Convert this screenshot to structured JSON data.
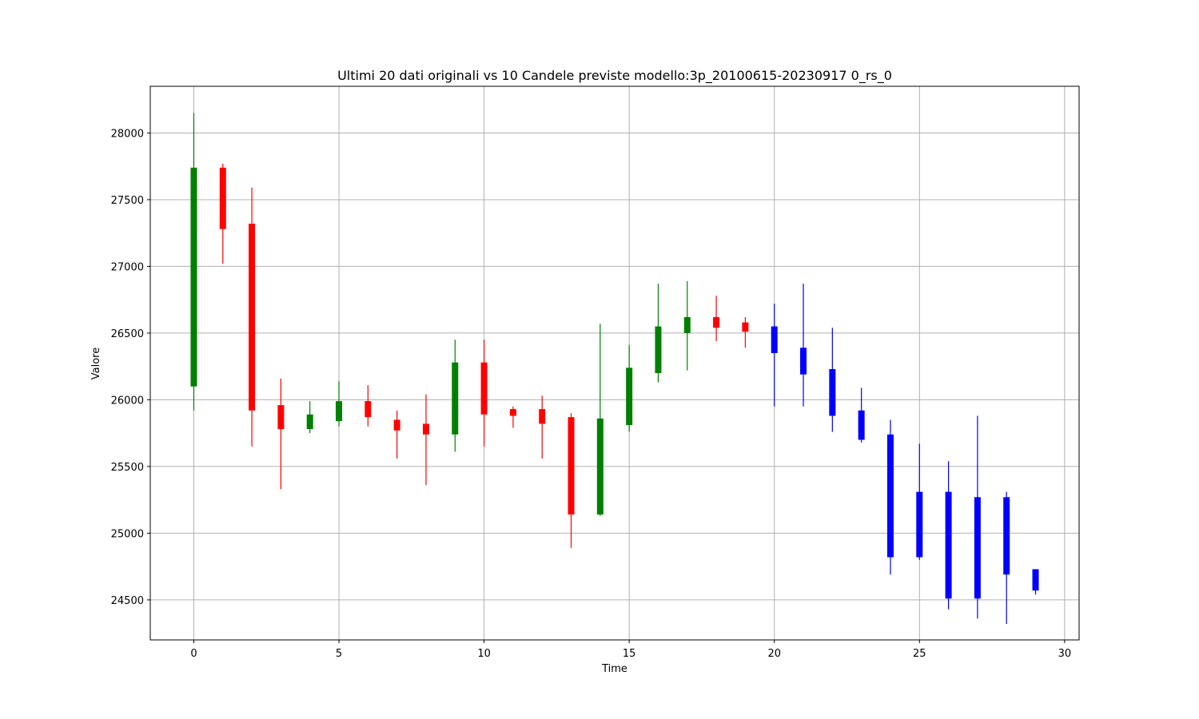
{
  "chart_data": {
    "type": "candlestick",
    "title": "Ultimi 20 dati originali vs 10 Candele previste modello:3p_20100615-20230917 0_rs_0",
    "xlabel": "Time",
    "ylabel": "Valore",
    "xlim": [
      -1.5,
      30.5
    ],
    "ylim": [
      24200,
      28350
    ],
    "x_ticks": [
      0,
      5,
      10,
      15,
      20,
      25,
      30
    ],
    "y_ticks": [
      24500,
      25000,
      25500,
      26000,
      26500,
      27000,
      27500,
      28000
    ],
    "grid": true,
    "colors": {
      "up": "#008000",
      "down": "#ff0000",
      "forecast": "#0000ff",
      "grid": "#b0b0b0"
    },
    "series": [
      {
        "name": "original",
        "candles": [
          {
            "x": 0,
            "open": 26100,
            "high": 28150,
            "low": 25920,
            "close": 27740
          },
          {
            "x": 1,
            "open": 27740,
            "high": 27770,
            "low": 27020,
            "close": 27280
          },
          {
            "x": 2,
            "open": 27320,
            "high": 27590,
            "low": 25650,
            "close": 25920
          },
          {
            "x": 3,
            "open": 25960,
            "high": 26160,
            "low": 25330,
            "close": 25780
          },
          {
            "x": 4,
            "open": 25780,
            "high": 25990,
            "low": 25750,
            "close": 25890
          },
          {
            "x": 5,
            "open": 25840,
            "high": 26140,
            "low": 25800,
            "close": 25990
          },
          {
            "x": 6,
            "open": 25990,
            "high": 26110,
            "low": 25800,
            "close": 25870
          },
          {
            "x": 7,
            "open": 25850,
            "high": 25920,
            "low": 25560,
            "close": 25770
          },
          {
            "x": 8,
            "open": 25820,
            "high": 26040,
            "low": 25360,
            "close": 25740
          },
          {
            "x": 9,
            "open": 25740,
            "high": 26450,
            "low": 25610,
            "close": 26280
          },
          {
            "x": 10,
            "open": 26280,
            "high": 26450,
            "low": 25650,
            "close": 25890
          },
          {
            "x": 11,
            "open": 25930,
            "high": 25950,
            "low": 25790,
            "close": 25880
          },
          {
            "x": 12,
            "open": 25930,
            "high": 26030,
            "low": 25560,
            "close": 25820
          },
          {
            "x": 13,
            "open": 25870,
            "high": 25900,
            "low": 24890,
            "close": 25140
          },
          {
            "x": 14,
            "open": 25140,
            "high": 26570,
            "low": 25130,
            "close": 25860
          },
          {
            "x": 15,
            "open": 25810,
            "high": 26410,
            "low": 25760,
            "close": 26240
          },
          {
            "x": 16,
            "open": 26200,
            "high": 26870,
            "low": 26130,
            "close": 26550
          },
          {
            "x": 17,
            "open": 26500,
            "high": 26890,
            "low": 26220,
            "close": 26620
          },
          {
            "x": 18,
            "open": 26620,
            "high": 26780,
            "low": 26440,
            "close": 26540
          },
          {
            "x": 19,
            "open": 26580,
            "high": 26620,
            "low": 26390,
            "close": 26510
          }
        ]
      },
      {
        "name": "forecast",
        "candles": [
          {
            "x": 20,
            "open": 26550,
            "high": 26720,
            "low": 25950,
            "close": 26350
          },
          {
            "x": 21,
            "open": 26390,
            "high": 26870,
            "low": 25950,
            "close": 26190
          },
          {
            "x": 22,
            "open": 26230,
            "high": 26540,
            "low": 25760,
            "close": 25880
          },
          {
            "x": 23,
            "open": 25920,
            "high": 26090,
            "low": 25680,
            "close": 25700
          },
          {
            "x": 24,
            "open": 25740,
            "high": 25850,
            "low": 24690,
            "close": 24820
          },
          {
            "x": 25,
            "open": 25310,
            "high": 25670,
            "low": 24800,
            "close": 24820
          },
          {
            "x": 26,
            "open": 25310,
            "high": 25540,
            "low": 24430,
            "close": 24510
          },
          {
            "x": 27,
            "open": 25270,
            "high": 25880,
            "low": 24360,
            "close": 24510
          },
          {
            "x": 28,
            "open": 25270,
            "high": 25310,
            "low": 24320,
            "close": 24690
          },
          {
            "x": 29,
            "open": 24730,
            "high": 24730,
            "low": 24540,
            "close": 24570
          }
        ]
      }
    ]
  }
}
